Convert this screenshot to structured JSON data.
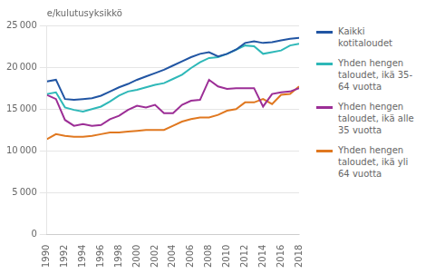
{
  "chart_data": {
    "type": "line",
    "ylabel": "e/kulutusyksikkö",
    "x": [
      1990,
      1991,
      1992,
      1993,
      1994,
      1995,
      1996,
      1997,
      1998,
      1999,
      2000,
      2001,
      2002,
      2003,
      2004,
      2005,
      2006,
      2007,
      2008,
      2009,
      2010,
      2011,
      2012,
      2013,
      2014,
      2015,
      2016,
      2017,
      2018
    ],
    "series": [
      {
        "name": "Kaikki\nkotitaloudet",
        "color": "#2155a3",
        "values": [
          18300,
          18500,
          16200,
          16100,
          16200,
          16300,
          16600,
          17100,
          17600,
          18000,
          18500,
          18900,
          19300,
          19700,
          20200,
          20700,
          21200,
          21600,
          21800,
          21300,
          21600,
          22100,
          22900,
          23100,
          22900,
          23000,
          23200,
          23400,
          23500
        ]
      },
      {
        "name": "Yhden hengen\ntaloudet, ikä 35-\n64 vuotta",
        "color": "#2eb8b8",
        "values": [
          16800,
          17000,
          15200,
          14900,
          14700,
          15000,
          15300,
          15900,
          16600,
          17100,
          17300,
          17600,
          17900,
          18100,
          18600,
          19100,
          19900,
          20600,
          21100,
          21200,
          21600,
          22100,
          22600,
          22500,
          21600,
          21800,
          22000,
          22600,
          22800
        ]
      },
      {
        "name": "Yhden hengen\ntaloudet, ikä alle\n35 vuotta",
        "color": "#9c2e96",
        "values": [
          16700,
          16200,
          13700,
          13000,
          13200,
          13000,
          13100,
          13800,
          14200,
          14900,
          15400,
          15200,
          15500,
          14500,
          14500,
          15500,
          16000,
          16100,
          18500,
          17700,
          17400,
          17500,
          17500,
          17500,
          15300,
          16800,
          17000,
          17100,
          17500
        ]
      },
      {
        "name": "Yhden hengen\ntaloudet, ikä yli\n64 vuotta",
        "color": "#e07820",
        "values": [
          11400,
          12000,
          11800,
          11700,
          11700,
          11800,
          12000,
          12200,
          12200,
          12300,
          12400,
          12500,
          12500,
          12500,
          13000,
          13500,
          13800,
          14000,
          14000,
          14300,
          14800,
          15000,
          15800,
          15800,
          16200,
          15600,
          16700,
          16800,
          17700
        ]
      }
    ],
    "xlim": [
      1990,
      2018
    ],
    "xticks": [
      1990,
      1992,
      1994,
      1996,
      1998,
      2000,
      2002,
      2004,
      2006,
      2008,
      2010,
      2012,
      2014,
      2016,
      2018
    ],
    "ylim": [
      0,
      25000
    ],
    "yticks": [
      0,
      {
        "value": 5000,
        "label": "5 000"
      },
      {
        "value": 10000,
        "label": "10 000"
      },
      {
        "value": 15000,
        "label": "15 000"
      },
      {
        "value": 20000,
        "label": "20 000"
      },
      {
        "value": 25000,
        "label": "25 000"
      }
    ],
    "grid": "y",
    "legend": "right"
  }
}
